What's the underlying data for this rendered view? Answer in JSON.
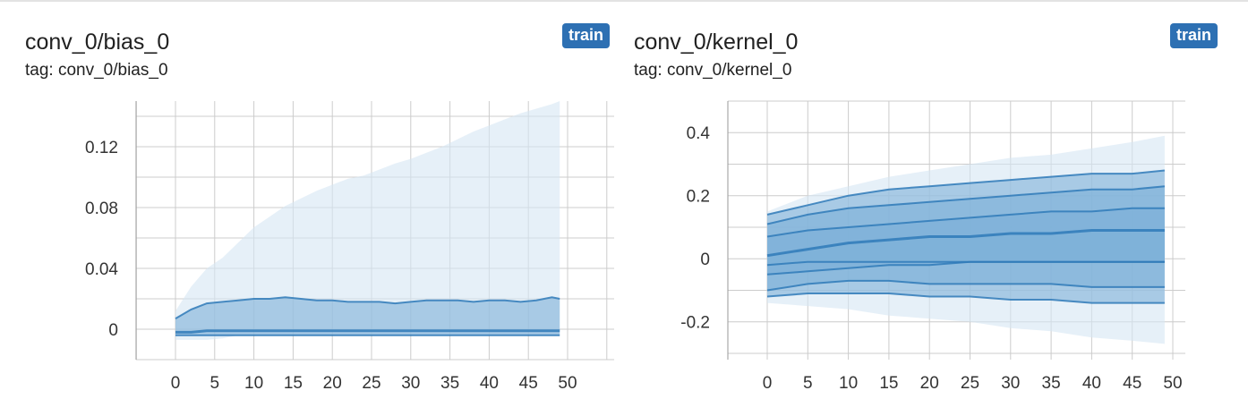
{
  "colors": {
    "badge": "#2d70b3",
    "band_outer": "#d6e6f4",
    "band_inner": "#7eb1d8",
    "line": "#2f7ab9",
    "grid": "#cccccc"
  },
  "charts": [
    {
      "title": "conv_0/bias_0",
      "tag": "tag: conv_0/bias_0",
      "run": "train"
    },
    {
      "title": "conv_0/kernel_0",
      "tag": "tag: conv_0/kernel_0",
      "run": "train"
    }
  ],
  "chart_data": [
    {
      "type": "area",
      "title": "conv_0/bias_0",
      "subtitle": "tag: conv_0/bias_0",
      "legend": [
        "train"
      ],
      "grid": true,
      "xlim": [
        -5,
        54
      ],
      "ylim": [
        -0.02,
        0.15
      ],
      "xticks": [
        0,
        5,
        10,
        15,
        20,
        25,
        30,
        35,
        40,
        45,
        50
      ],
      "yticks": [
        0,
        0.04,
        0.08,
        0.12
      ],
      "ytick_labels": [
        "0",
        "0.04",
        "0.08",
        "0.12"
      ],
      "x": [
        0,
        2,
        4,
        6,
        8,
        10,
        12,
        14,
        16,
        18,
        20,
        22,
        24,
        26,
        28,
        30,
        32,
        34,
        36,
        38,
        40,
        42,
        44,
        46,
        48,
        49
      ],
      "series": [
        {
          "role": "outer_upper",
          "values": [
            0.012,
            0.028,
            0.04,
            0.047,
            0.057,
            0.067,
            0.074,
            0.081,
            0.086,
            0.091,
            0.095,
            0.099,
            0.101,
            0.105,
            0.109,
            0.112,
            0.116,
            0.12,
            0.125,
            0.13,
            0.134,
            0.138,
            0.142,
            0.145,
            0.148,
            0.15
          ]
        },
        {
          "role": "inner_upper",
          "values": [
            0.007,
            0.013,
            0.017,
            0.018,
            0.019,
            0.02,
            0.02,
            0.021,
            0.02,
            0.019,
            0.019,
            0.018,
            0.018,
            0.018,
            0.017,
            0.018,
            0.019,
            0.019,
            0.019,
            0.018,
            0.019,
            0.019,
            0.018,
            0.019,
            0.021,
            0.02
          ]
        },
        {
          "role": "median",
          "values": [
            -0.002,
            -0.002,
            -0.001,
            -0.001,
            -0.001,
            -0.001,
            -0.001,
            -0.001,
            -0.001,
            -0.001,
            -0.001,
            -0.001,
            -0.001,
            -0.001,
            -0.001,
            -0.001,
            -0.001,
            -0.001,
            -0.001,
            -0.001,
            -0.001,
            -0.001,
            -0.001,
            -0.001,
            -0.001,
            -0.001
          ]
        },
        {
          "role": "inner_lower",
          "values": [
            -0.004,
            -0.004,
            -0.004,
            -0.004,
            -0.004,
            -0.004,
            -0.004,
            -0.004,
            -0.004,
            -0.004,
            -0.004,
            -0.004,
            -0.004,
            -0.004,
            -0.004,
            -0.004,
            -0.004,
            -0.004,
            -0.004,
            -0.004,
            -0.004,
            -0.004,
            -0.004,
            -0.004,
            -0.004,
            -0.004
          ]
        },
        {
          "role": "outer_lower",
          "values": [
            -0.007,
            -0.007,
            -0.007,
            -0.006,
            -0.004,
            -0.004,
            -0.004,
            -0.004,
            -0.004,
            -0.004,
            -0.004,
            -0.004,
            -0.004,
            -0.004,
            -0.004,
            -0.004,
            -0.004,
            -0.004,
            -0.004,
            -0.004,
            -0.004,
            -0.004,
            -0.004,
            -0.004,
            -0.004,
            -0.004
          ]
        }
      ]
    },
    {
      "type": "area",
      "title": "conv_0/kernel_0",
      "subtitle": "tag: conv_0/kernel_0",
      "legend": [
        "train"
      ],
      "grid": true,
      "xlim": [
        -5,
        54
      ],
      "ylim": [
        -0.32,
        0.5
      ],
      "xticks": [
        0,
        5,
        10,
        15,
        20,
        25,
        30,
        35,
        40,
        45,
        50
      ],
      "yticks": [
        -0.2,
        0,
        0.2,
        0.4
      ],
      "ytick_labels": [
        "-0.2",
        "0",
        "0.2",
        "0.4"
      ],
      "x": [
        0,
        5,
        10,
        15,
        20,
        25,
        30,
        35,
        40,
        45,
        49
      ],
      "series": [
        {
          "role": "outer_upper",
          "values": [
            0.15,
            0.2,
            0.23,
            0.26,
            0.28,
            0.3,
            0.32,
            0.33,
            0.35,
            0.37,
            0.39
          ]
        },
        {
          "role": "band_2_upper",
          "values": [
            0.14,
            0.17,
            0.2,
            0.22,
            0.23,
            0.24,
            0.25,
            0.26,
            0.27,
            0.27,
            0.28
          ]
        },
        {
          "role": "band_1_upper",
          "values": [
            0.11,
            0.14,
            0.16,
            0.17,
            0.18,
            0.19,
            0.2,
            0.21,
            0.22,
            0.22,
            0.23
          ]
        },
        {
          "role": "upper_mid",
          "values": [
            0.07,
            0.09,
            0.1,
            0.11,
            0.12,
            0.13,
            0.14,
            0.15,
            0.15,
            0.16,
            0.16
          ]
        },
        {
          "role": "median",
          "values": [
            0.01,
            0.03,
            0.05,
            0.06,
            0.07,
            0.07,
            0.08,
            0.08,
            0.09,
            0.09,
            0.09
          ]
        },
        {
          "role": "lower_mid",
          "values": [
            -0.02,
            -0.01,
            -0.01,
            -0.01,
            -0.01,
            -0.01,
            -0.01,
            -0.01,
            -0.01,
            -0.01,
            -0.01
          ]
        },
        {
          "role": "band_1_lower",
          "values": [
            -0.05,
            -0.04,
            -0.03,
            -0.02,
            -0.02,
            -0.01,
            -0.01,
            -0.01,
            -0.01,
            -0.01,
            -0.01
          ]
        },
        {
          "role": "band_2_lower",
          "values": [
            -0.1,
            -0.08,
            -0.07,
            -0.07,
            -0.08,
            -0.08,
            -0.08,
            -0.08,
            -0.09,
            -0.09,
            -0.09
          ]
        },
        {
          "role": "band_3_lower",
          "values": [
            -0.12,
            -0.11,
            -0.11,
            -0.11,
            -0.12,
            -0.12,
            -0.13,
            -0.13,
            -0.14,
            -0.14,
            -0.14
          ]
        },
        {
          "role": "outer_lower",
          "values": [
            -0.14,
            -0.15,
            -0.16,
            -0.18,
            -0.19,
            -0.2,
            -0.22,
            -0.23,
            -0.25,
            -0.26,
            -0.27
          ]
        }
      ]
    }
  ]
}
